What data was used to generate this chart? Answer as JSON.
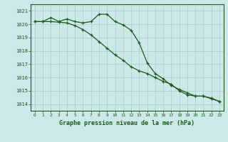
{
  "title": "Graphe pression niveau de la mer (hPa)",
  "bg_color": "#cce8e8",
  "grid_color": "#aacccc",
  "line_color": "#1a5c1a",
  "xlim": [
    -0.5,
    23.5
  ],
  "ylim": [
    1013.5,
    1021.5
  ],
  "yticks": [
    1014,
    1015,
    1016,
    1017,
    1018,
    1019,
    1020,
    1021
  ],
  "xticks": [
    0,
    1,
    2,
    3,
    4,
    5,
    6,
    7,
    8,
    9,
    10,
    11,
    12,
    13,
    14,
    15,
    16,
    17,
    18,
    19,
    20,
    21,
    22,
    23
  ],
  "line1_x": [
    0,
    1,
    2,
    3,
    4,
    5,
    6,
    7,
    8,
    9,
    10,
    11,
    12,
    13,
    14,
    15,
    16,
    17,
    18,
    19,
    20,
    21,
    22,
    23
  ],
  "line1_y": [
    1020.2,
    1020.2,
    1020.5,
    1020.2,
    1020.4,
    1020.2,
    1020.1,
    1020.2,
    1020.75,
    1020.75,
    1020.2,
    1019.95,
    1019.55,
    1018.6,
    1017.1,
    1016.3,
    1015.9,
    1015.4,
    1015.1,
    1014.85,
    1014.6,
    1014.6,
    1014.45,
    1014.2
  ],
  "line2_x": [
    0,
    1,
    2,
    3,
    4,
    5,
    6,
    7,
    8,
    9,
    10,
    11,
    12,
    13,
    14,
    15,
    16,
    17,
    18,
    19,
    20,
    21,
    22,
    23
  ],
  "line2_y": [
    1020.2,
    1020.2,
    1020.2,
    1020.15,
    1020.1,
    1019.9,
    1019.6,
    1019.2,
    1018.7,
    1018.2,
    1017.7,
    1017.3,
    1016.8,
    1016.5,
    1016.3,
    1016.0,
    1015.7,
    1015.5,
    1015.0,
    1014.7,
    1014.6,
    1014.6,
    1014.4,
    1014.2
  ]
}
